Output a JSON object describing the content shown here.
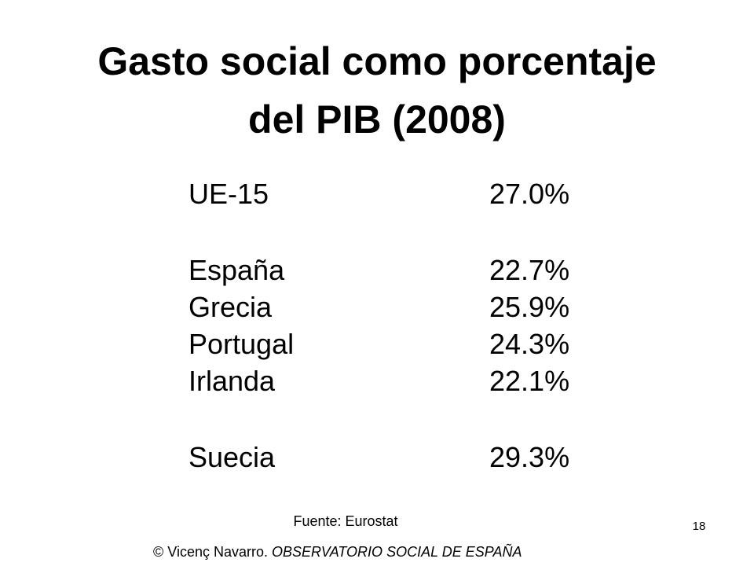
{
  "title": {
    "line1": "Gasto social como porcentaje",
    "line2": "del PIB (2008)"
  },
  "rows": [
    {
      "label": "UE-15",
      "value": "27.0%"
    },
    {
      "label": "España",
      "value": "22.7%"
    },
    {
      "label": "Grecia",
      "value": "25.9%"
    },
    {
      "label": "Portugal",
      "value": "24.3%"
    },
    {
      "label": "Irlanda",
      "value": "22.1%"
    },
    {
      "label": "Suecia",
      "value": "29.3%"
    }
  ],
  "source": "Fuente: Eurostat",
  "page_number": "18",
  "copyright": {
    "author": "© Vicenç Navarro.",
    "organization": "OBSERVATORIO SOCIAL DE ESPAÑA"
  }
}
